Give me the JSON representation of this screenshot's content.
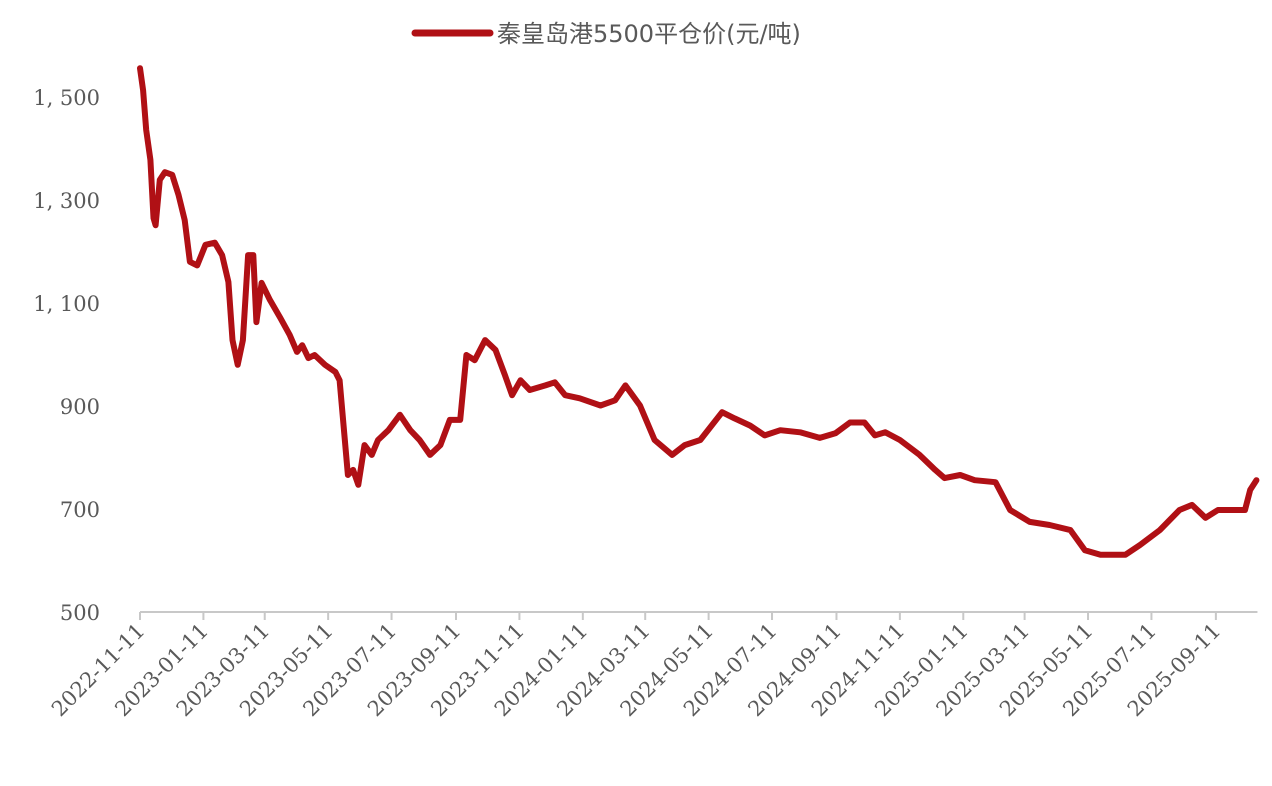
{
  "chart_data": {
    "type": "line",
    "title": "",
    "xlabel": "",
    "ylabel": "",
    "legend": {
      "position": "top",
      "entries": [
        "秦皇岛港5500平仓价(元/吨)"
      ]
    },
    "ylim": [
      500,
      1580
    ],
    "yticks": [
      500,
      700,
      900,
      1100,
      1300,
      1500
    ],
    "ytick_labels": [
      "500",
      "700",
      "900",
      "1, 100",
      "1, 300",
      "1, 500"
    ],
    "x_start": "2022-11-11",
    "x_end": "2025-10-21",
    "xticks": [
      "2022-11-11",
      "2023-01-11",
      "2023-03-11",
      "2023-05-11",
      "2023-07-11",
      "2023-09-11",
      "2023-11-11",
      "2024-01-11",
      "2024-03-11",
      "2024-05-11",
      "2024-07-11",
      "2024-09-11",
      "2024-11-11",
      "2025-01-11",
      "2025-03-11",
      "2025-05-11",
      "2025-07-11",
      "2025-09-11"
    ],
    "grid": false,
    "series": [
      {
        "name": "秦皇岛港5500平仓价(元/吨)",
        "color": "#b01015",
        "x_unit": "days since x_start",
        "points": [
          [
            0,
            1556
          ],
          [
            3,
            1513
          ],
          [
            6,
            1436
          ],
          [
            10,
            1378
          ],
          [
            13,
            1265
          ],
          [
            15,
            1251
          ],
          [
            19,
            1339
          ],
          [
            24,
            1354
          ],
          [
            31,
            1349
          ],
          [
            37,
            1310
          ],
          [
            43,
            1261
          ],
          [
            48,
            1180
          ],
          [
            55,
            1173
          ],
          [
            63,
            1213
          ],
          [
            72,
            1217
          ],
          [
            79,
            1193
          ],
          [
            85,
            1141
          ],
          [
            89,
            1028
          ],
          [
            94,
            980
          ],
          [
            99,
            1028
          ],
          [
            104,
            1193
          ],
          [
            109,
            1193
          ],
          [
            112,
            1063
          ],
          [
            117,
            1139
          ],
          [
            125,
            1106
          ],
          [
            135,
            1071
          ],
          [
            144,
            1038
          ],
          [
            151,
            1005
          ],
          [
            156,
            1018
          ],
          [
            162,
            993
          ],
          [
            168,
            999
          ],
          [
            178,
            980
          ],
          [
            188,
            966
          ],
          [
            192,
            950
          ],
          [
            200,
            766
          ],
          [
            205,
            776
          ],
          [
            210,
            747
          ],
          [
            216,
            824
          ],
          [
            223,
            805
          ],
          [
            229,
            834
          ],
          [
            239,
            853
          ],
          [
            250,
            883
          ],
          [
            260,
            853
          ],
          [
            269,
            834
          ],
          [
            279,
            805
          ],
          [
            289,
            824
          ],
          [
            298,
            873
          ],
          [
            308,
            873
          ],
          [
            314,
            999
          ],
          [
            322,
            989
          ],
          [
            332,
            1028
          ],
          [
            342,
            1009
          ],
          [
            351,
            960
          ],
          [
            358,
            921
          ],
          [
            366,
            950
          ],
          [
            375,
            931
          ],
          [
            390,
            940
          ],
          [
            399,
            946
          ],
          [
            409,
            921
          ],
          [
            423,
            915
          ],
          [
            443,
            901
          ],
          [
            457,
            911
          ],
          [
            467,
            940
          ],
          [
            481,
            901
          ],
          [
            495,
            834
          ],
          [
            512,
            805
          ],
          [
            524,
            824
          ],
          [
            539,
            834
          ],
          [
            548,
            857
          ],
          [
            560,
            888
          ],
          [
            572,
            876
          ],
          [
            587,
            862
          ],
          [
            601,
            843
          ],
          [
            616,
            853
          ],
          [
            635,
            849
          ],
          [
            654,
            838
          ],
          [
            669,
            847
          ],
          [
            683,
            868
          ],
          [
            697,
            868
          ],
          [
            707,
            843
          ],
          [
            717,
            849
          ],
          [
            731,
            834
          ],
          [
            750,
            805
          ],
          [
            765,
            776
          ],
          [
            774,
            760
          ],
          [
            789,
            766
          ],
          [
            803,
            756
          ],
          [
            823,
            752
          ],
          [
            837,
            698
          ],
          [
            856,
            675
          ],
          [
            875,
            669
          ],
          [
            895,
            659
          ],
          [
            909,
            620
          ],
          [
            924,
            611
          ],
          [
            948,
            611
          ],
          [
            962,
            630
          ],
          [
            981,
            659
          ],
          [
            1000,
            698
          ],
          [
            1012,
            708
          ],
          [
            1025,
            683
          ],
          [
            1037,
            698
          ],
          [
            1050,
            698
          ],
          [
            1063,
            698
          ],
          [
            1068,
            737
          ],
          [
            1074,
            756
          ]
        ]
      }
    ]
  }
}
